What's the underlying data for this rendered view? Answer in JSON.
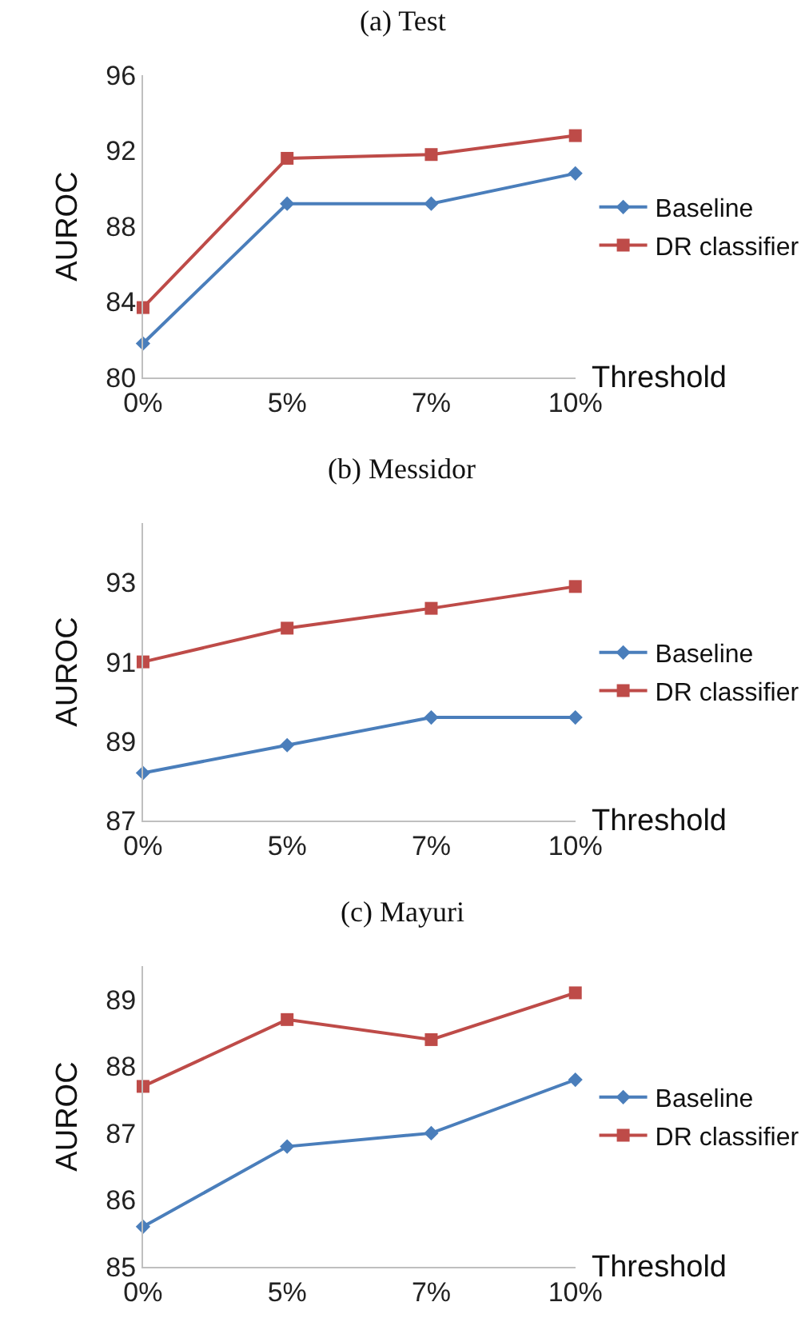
{
  "chart_data": [
    {
      "type": "line",
      "title": "(a) Test",
      "xlabel": "Threshold",
      "ylabel": "AUROC",
      "categories": [
        "0%",
        "5%",
        "7%",
        "10%"
      ],
      "series": [
        {
          "name": "Baseline",
          "color": "#4a7ebb",
          "marker": "diamond",
          "values": [
            81.8,
            89.2,
            89.2,
            90.8
          ]
        },
        {
          "name": "DR classifier",
          "color": "#be4b48",
          "marker": "square",
          "values": [
            83.7,
            91.6,
            91.8,
            92.8
          ]
        }
      ],
      "ylim": [
        80,
        96
      ],
      "yticks": [
        80,
        84,
        88,
        92,
        96
      ],
      "grid": false,
      "legend": "right"
    },
    {
      "type": "line",
      "title": "(b) Messidor",
      "xlabel": "Threshold",
      "ylabel": "AUROC",
      "categories": [
        "0%",
        "5%",
        "7%",
        "10%"
      ],
      "series": [
        {
          "name": "Baseline",
          "color": "#4a7ebb",
          "marker": "diamond",
          "values": [
            88.2,
            88.9,
            89.6,
            89.6
          ]
        },
        {
          "name": "DR classifier",
          "color": "#be4b48",
          "marker": "square",
          "values": [
            91.0,
            91.85,
            92.35,
            92.9
          ]
        }
      ],
      "ylim": [
        87,
        94.5
      ],
      "yticks": [
        87,
        89,
        91,
        93
      ],
      "grid": false,
      "legend": "right"
    },
    {
      "type": "line",
      "title": "(c) Mayuri",
      "xlabel": "Threshold",
      "ylabel": "AUROC",
      "categories": [
        "0%",
        "5%",
        "7%",
        "10%"
      ],
      "series": [
        {
          "name": "Baseline",
          "color": "#4a7ebb",
          "marker": "diamond",
          "values": [
            85.6,
            86.8,
            87.0,
            87.8
          ]
        },
        {
          "name": "DR classifier",
          "color": "#be4b48",
          "marker": "square",
          "values": [
            87.7,
            88.7,
            88.4,
            89.1
          ]
        }
      ],
      "ylim": [
        85,
        89.5
      ],
      "yticks": [
        85,
        86,
        87,
        88,
        89
      ],
      "grid": false,
      "legend": "right"
    }
  ]
}
